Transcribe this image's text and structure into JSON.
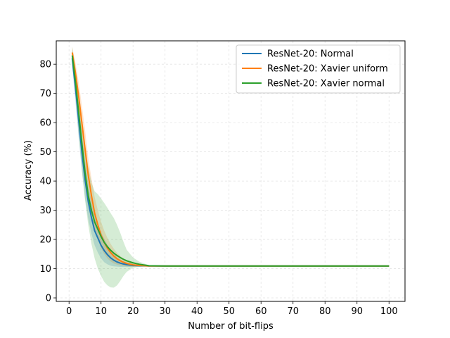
{
  "chart_data": {
    "type": "line",
    "xlabel": "Number of bit-flips",
    "ylabel": "Accuracy (%)",
    "xlim": [
      -4,
      105
    ],
    "ylim": [
      -1.2,
      88
    ],
    "xticks": [
      0,
      10,
      20,
      30,
      40,
      50,
      60,
      70,
      80,
      90,
      100
    ],
    "yticks": [
      0,
      10,
      20,
      30,
      40,
      50,
      60,
      70,
      80
    ],
    "grid": true,
    "legend_position": "top-right",
    "series": [
      {
        "name": "ResNet-20: Normal",
        "color": "#1f77b4",
        "x": [
          1,
          2,
          3,
          4,
          5,
          6,
          7,
          8,
          9,
          10,
          11,
          12,
          13,
          14,
          15,
          16,
          17,
          18,
          20,
          22,
          25,
          30,
          40,
          50,
          60,
          70,
          80,
          90,
          100
        ],
        "y": [
          82.0,
          72.0,
          61.0,
          50.0,
          40.5,
          33.0,
          27.5,
          23.0,
          20.5,
          18.0,
          16.2,
          14.8,
          13.7,
          12.9,
          12.3,
          11.9,
          11.6,
          11.4,
          11.1,
          11.0,
          10.9,
          10.9,
          10.9,
          10.9,
          10.9,
          10.9,
          10.9,
          10.9,
          10.9
        ],
        "lower": [
          79.0,
          67.0,
          55.0,
          43.5,
          34.0,
          27.0,
          22.0,
          18.0,
          15.5,
          13.5,
          12.2,
          11.5,
          11.0,
          10.8,
          10.7,
          10.6,
          10.6,
          10.6,
          10.6,
          10.7,
          10.8,
          10.9,
          10.9,
          10.9,
          10.9,
          10.9,
          10.9,
          10.9,
          10.9
        ],
        "upper": [
          85.0,
          77.0,
          67.0,
          56.5,
          47.0,
          39.0,
          33.0,
          28.0,
          25.5,
          22.5,
          20.2,
          18.1,
          16.4,
          15.0,
          13.9,
          13.2,
          12.6,
          12.2,
          11.6,
          11.3,
          11.0,
          10.9,
          10.9,
          10.9,
          10.9,
          10.9,
          10.9,
          10.9,
          10.9
        ]
      },
      {
        "name": "ResNet-20: Xavier uniform",
        "color": "#ff7f0e",
        "x": [
          1,
          2,
          3,
          4,
          5,
          6,
          7,
          8,
          9,
          10,
          11,
          12,
          13,
          14,
          15,
          16,
          17,
          18,
          20,
          22,
          25,
          30,
          40,
          50,
          60,
          70,
          80,
          90,
          100
        ],
        "y": [
          84.0,
          77.0,
          69.0,
          60.0,
          51.0,
          42.0,
          35.0,
          29.0,
          25.0,
          21.5,
          19.0,
          17.0,
          15.5,
          14.3,
          13.4,
          12.7,
          12.2,
          11.8,
          11.3,
          11.1,
          10.9,
          10.9,
          10.9,
          10.9,
          10.9,
          10.9,
          10.9,
          10.9,
          10.9
        ],
        "lower": [
          82.0,
          73.5,
          64.0,
          54.0,
          44.5,
          36.0,
          29.0,
          23.5,
          20.0,
          17.0,
          15.0,
          13.5,
          12.5,
          11.8,
          11.4,
          11.1,
          10.9,
          10.8,
          10.7,
          10.7,
          10.8,
          10.9,
          10.9,
          10.9,
          10.9,
          10.9,
          10.9,
          10.9,
          10.9
        ],
        "upper": [
          86.0,
          80.5,
          74.0,
          66.0,
          57.5,
          48.0,
          41.0,
          34.5,
          30.0,
          26.0,
          23.0,
          20.5,
          18.5,
          16.8,
          15.4,
          14.3,
          13.5,
          12.8,
          11.9,
          11.5,
          11.0,
          10.9,
          10.9,
          10.9,
          10.9,
          10.9,
          10.9,
          10.9,
          10.9
        ]
      },
      {
        "name": "ResNet-20: Xavier normal",
        "color": "#2ca02c",
        "x": [
          1,
          2,
          3,
          4,
          5,
          6,
          7,
          8,
          9,
          10,
          11,
          12,
          13,
          14,
          15,
          16,
          17,
          18,
          20,
          22,
          25,
          30,
          40,
          50,
          60,
          70,
          80,
          90,
          100
        ],
        "y": [
          83.0,
          74.0,
          63.5,
          53.0,
          43.0,
          35.0,
          30.0,
          26.0,
          23.5,
          21.0,
          19.0,
          17.5,
          16.3,
          15.3,
          14.5,
          13.8,
          13.2,
          12.7,
          12.0,
          11.5,
          11.0,
          10.9,
          10.9,
          10.9,
          10.9,
          10.9,
          10.9,
          10.9,
          10.9
        ],
        "lower": [
          80.0,
          69.0,
          56.0,
          44.0,
          33.5,
          25.0,
          18.5,
          13.5,
          10.0,
          7.5,
          5.5,
          4.3,
          3.6,
          3.5,
          4.3,
          5.8,
          7.5,
          8.9,
          10.3,
          10.6,
          10.8,
          10.9,
          10.9,
          10.9,
          10.9,
          10.9,
          10.9,
          10.9,
          10.9
        ],
        "upper": [
          86.0,
          79.0,
          71.0,
          62.0,
          52.5,
          45.0,
          39.5,
          36.5,
          35.5,
          34.0,
          32.5,
          30.8,
          29.0,
          27.3,
          25.0,
          22.3,
          19.2,
          16.5,
          13.8,
          12.4,
          11.2,
          10.9,
          10.9,
          10.9,
          10.9,
          10.9,
          10.9,
          10.9,
          10.9
        ]
      }
    ]
  }
}
